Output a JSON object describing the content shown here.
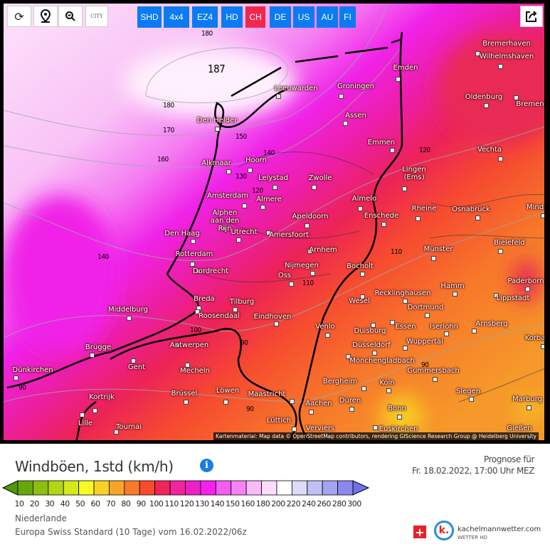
{
  "toolbar": {
    "reload_icon": "reload-icon",
    "location_icon": "map-pin-icon",
    "zoom_out_icon": "zoom-out-icon",
    "city_toggle": "CITY",
    "models": [
      {
        "label": "SHD",
        "active": false
      },
      {
        "label": "4x4",
        "active": false
      },
      {
        "label": "EZ4",
        "active": false
      },
      {
        "label": "HD",
        "active": false
      },
      {
        "label": "CH",
        "active": true
      },
      {
        "label": "DE",
        "active": false
      },
      {
        "label": "US",
        "active": false
      },
      {
        "label": "AU",
        "active": false
      },
      {
        "label": "FI",
        "active": false
      }
    ],
    "share_icon": "share-icon"
  },
  "map": {
    "cities": [
      "Bremerhaven",
      "Wilhelmshaven",
      "Emden",
      "Leeuwarden",
      "Groningen",
      "Bremen",
      "Oldenburg",
      "Den Helder",
      "Assen",
      "Emmen",
      "Vechta",
      "Alkmaar",
      "Hoorn",
      "Lelystad",
      "Zwolle",
      "Lingen\n(Ems)",
      "Amsterdam",
      "Almere",
      "Almelo",
      "Mind",
      "Rheine",
      "Osnabrück",
      "Alphen\naan den\nRijn",
      "Apeldoorn",
      "Enschede",
      "Den Haag",
      "Utrecht",
      "Amersfoort",
      "Bielefeld",
      "Arnhem",
      "Münster",
      "Rotterdam",
      "Nijmegen",
      "Bocholt",
      "Dordrecht",
      "Oss",
      "Hamm",
      "Paderborn",
      "Recklinghausen",
      "Lippstadt",
      "Breda",
      "Tilburg",
      "Wesel",
      "Middelburg",
      "Roosendaal",
      "Dortmund",
      "Eindhoven",
      "Arnsberg",
      "Venlo",
      "Essen",
      "Iserlohn",
      "Duisburg",
      "Korba",
      "Antwerpen",
      "Wuppertal",
      "Brügge",
      "Düsseldorf",
      "Mönchengladbach",
      "Dünkirchen",
      "Gent",
      "Mecheln",
      "Gummersbach",
      "Bergheim",
      "Köln",
      "Kortrijk",
      "Brüssel",
      "Löwen",
      "Maastricht",
      "Düren",
      "Siegen",
      "Aachen",
      "Bonn",
      "Marburg",
      "Lille",
      "Tournai",
      "Lüttich",
      "Verviers",
      "Euskirchen",
      "Gießen"
    ],
    "isolines": [
      "180",
      "187",
      "180",
      "170",
      "160",
      "150",
      "140",
      "130",
      "120",
      "120",
      "110",
      "140",
      "100",
      "90",
      "90",
      "90",
      "90",
      "110"
    ],
    "attribution": "Kartenmaterial: Map data © OpenStreetMap contributors, rendering GIScience Research Group @ Heidelberg University"
  },
  "header": {
    "title": "Windböen, 1std (km/h)",
    "info_icon": "info-icon",
    "forecast_label": "Prognose für",
    "forecast_time": "Fr. 18.02.2022, 17:00 Uhr MEZ"
  },
  "legend": {
    "labels": [
      "10",
      "20",
      "30",
      "40",
      "50",
      "60",
      "70",
      "80",
      "90",
      "100",
      "110",
      "120",
      "130",
      "140",
      "150",
      "160",
      "180",
      "200",
      "220",
      "240",
      "260",
      "280",
      "300"
    ],
    "colors": [
      "#66a80c",
      "#8cbe12",
      "#b2d514",
      "#d6e91a",
      "#f8fb22",
      "#f9d026",
      "#f6a52a",
      "#f87b2a",
      "#f84b2e",
      "#f0245a",
      "#f0249c",
      "#ec20c6",
      "#f421ee",
      "#f45cf0",
      "#f682f4",
      "#f9baf7",
      "#fbdcfb",
      "#ffffff",
      "#dcdcf8",
      "#c0c0f5",
      "#a4a4f1",
      "#8888ee"
    ],
    "low_color": "#4d9a0a",
    "high_color": "#7070e8",
    "region": "Niederlande",
    "model_run": "Europa Swiss Standard  (10 Tage)  vom 16.02.2022/06z"
  },
  "branding": {
    "flag": "+",
    "logo_letter": "k.",
    "site": "kachelmannwetter.com",
    "sub": "WETTER HD"
  }
}
